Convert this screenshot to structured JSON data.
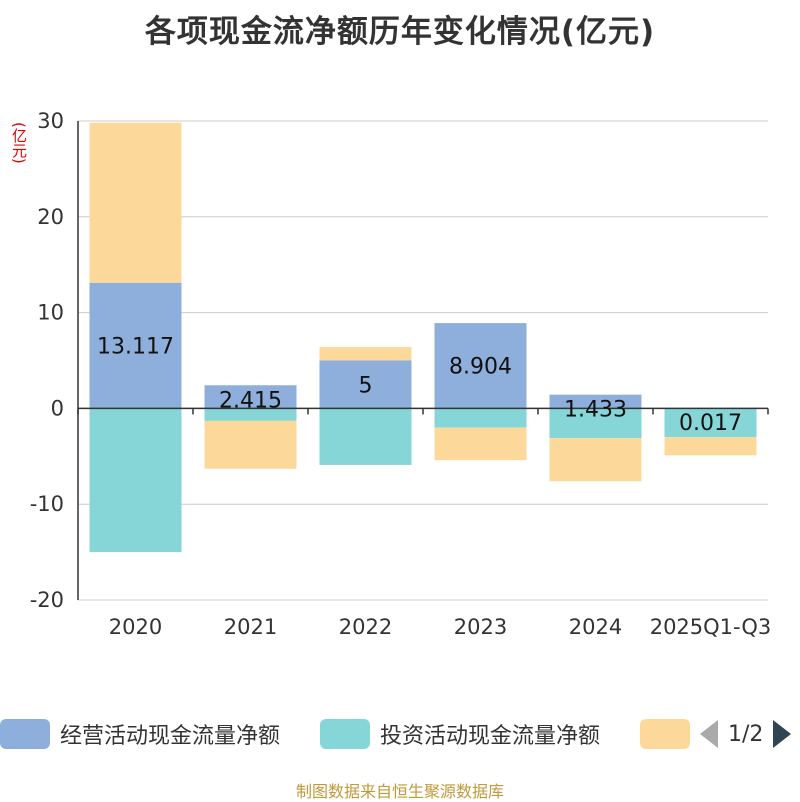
{
  "title": "各项现金流净额历年变化情况(亿元)",
  "unit_label": "(亿元)",
  "footer": "制图数据来自恒生聚源数据库",
  "legend": {
    "items": [
      {
        "label": "经营活动现金流量净额",
        "color": "#8eaedb"
      },
      {
        "label": "投资活动现金流量净额",
        "color": "#86d6d8"
      },
      {
        "label": "",
        "color": "#fdd89b"
      }
    ],
    "pager": "1/2"
  },
  "chart_data": {
    "type": "bar",
    "stacked": true,
    "title": "各项现金流净额历年变化情况(亿元)",
    "ylabel": "(亿元)",
    "ylim": [
      -20,
      30
    ],
    "yticks": [
      30,
      20,
      10,
      0,
      -10,
      -20
    ],
    "grid": true,
    "categories": [
      "2020",
      "2021",
      "2022",
      "2023",
      "2024",
      "2025Q1-Q3"
    ],
    "series": [
      {
        "name": "经营活动现金流量净额",
        "color": "#8eaedb",
        "values": [
          13.117,
          2.415,
          5,
          8.904,
          1.433,
          0.017
        ],
        "labels": [
          "13.117",
          "2.415",
          "5",
          "8.904",
          "1.433",
          "0.017"
        ]
      },
      {
        "name": "投资活动现金流量净额",
        "color": "#86d6d8",
        "values": [
          -15.0,
          -1.3,
          -5.9,
          -2.0,
          -3.1,
          -3.0
        ]
      },
      {
        "name": "",
        "color": "#fdd89b",
        "values": [
          16.7,
          -5.0,
          1.4,
          -3.4,
          -4.5,
          -1.9
        ]
      }
    ]
  }
}
